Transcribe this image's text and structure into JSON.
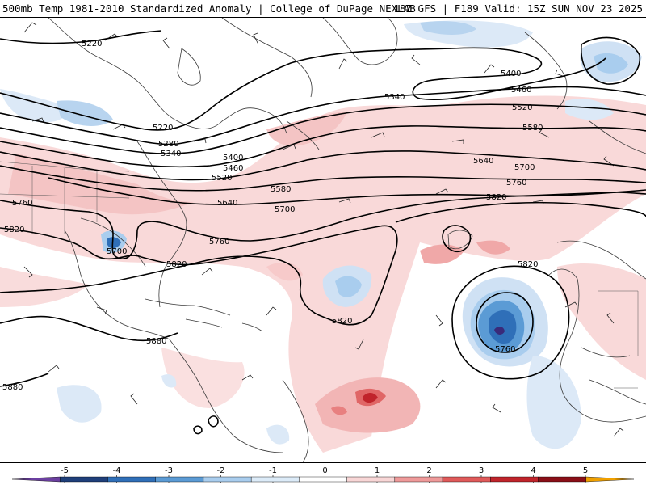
{
  "header": {
    "left": "500mb Temp 1981-2010 Standardized Anomaly | College of DuPage NEXLAB",
    "right": "18Z GFS | F189 Valid: 15Z SUN NOV 23 2025"
  },
  "contours": [
    {
      "label": "5220"
    },
    {
      "label": "5220"
    },
    {
      "label": "5280"
    },
    {
      "label": "5340"
    },
    {
      "label": "5340"
    },
    {
      "label": "5400"
    },
    {
      "label": "5400"
    },
    {
      "label": "5460"
    },
    {
      "label": "5460"
    },
    {
      "label": "5520"
    },
    {
      "label": "5520"
    },
    {
      "label": "5580"
    },
    {
      "label": "5580"
    },
    {
      "label": "5640"
    },
    {
      "label": "5640"
    },
    {
      "label": "5700"
    },
    {
      "label": "5700"
    },
    {
      "label": "5700"
    },
    {
      "label": "5760"
    },
    {
      "label": "5760"
    },
    {
      "label": "5760"
    },
    {
      "label": "5760"
    },
    {
      "label": "5820"
    },
    {
      "label": "5820"
    },
    {
      "label": "5820"
    },
    {
      "label": "5820"
    },
    {
      "label": "5820"
    },
    {
      "label": "5880"
    },
    {
      "label": "5880"
    }
  ],
  "colorbar": {
    "ticks": [
      "-5",
      "-4",
      "-3",
      "-2",
      "-1",
      "0",
      "1",
      "2",
      "3",
      "4",
      "5"
    ],
    "colors": [
      "#6b3fa0",
      "#1f3f7a",
      "#2f6fb8",
      "#5b9bd5",
      "#a9cdee",
      "#dcebf8",
      "#ffffff",
      "#f8d6d6",
      "#ef9a9a",
      "#e05a5a",
      "#c0242b",
      "#8a0f17",
      "#f0a000"
    ]
  }
}
